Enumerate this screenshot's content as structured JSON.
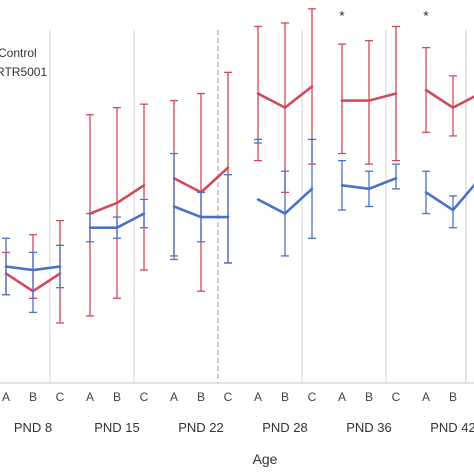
{
  "chart_data": {
    "type": "line",
    "xlabel": "Age",
    "ylabel": "",
    "ylim": [
      0,
      100
    ],
    "grid": false,
    "legend_position": "top-left",
    "legend": [
      {
        "name": "Control",
        "color": "#d24a5a"
      },
      {
        "name": "RTR5001",
        "color": "#4a72c8"
      }
    ],
    "groups": [
      {
        "label": "PND 8",
        "ticks": [
          "A",
          "B",
          "C"
        ],
        "series": [
          {
            "name": "Control",
            "values": [
              31,
              26,
              31
            ],
            "err_low": [
              25,
              24,
              17
            ],
            "err_high": [
              37,
              42,
              46
            ]
          },
          {
            "name": "RTR5001",
            "values": [
              33,
              32,
              33
            ],
            "err_low": [
              25,
              20,
              27
            ],
            "err_high": [
              41,
              37,
              39
            ]
          }
        ],
        "significant": false
      },
      {
        "label": "PND 15",
        "ticks": [
          "A",
          "B",
          "C"
        ],
        "series": [
          {
            "name": "Control",
            "values": [
              48,
              51,
              56
            ],
            "err_low": [
              19,
              24,
              32
            ],
            "err_high": [
              76,
              78,
              79
            ]
          },
          {
            "name": "RTR5001",
            "values": [
              44,
              44,
              48
            ],
            "err_low": [
              40,
              41,
              44
            ],
            "err_high": [
              48,
              47,
              52
            ]
          }
        ],
        "significant": false
      },
      {
        "label": "PND 22",
        "ticks": [
          "A",
          "B",
          "C"
        ],
        "series": [
          {
            "name": "Control",
            "values": [
              58,
              54,
              61
            ],
            "err_low": [
              36,
              26,
              34
            ],
            "err_high": [
              80,
              82,
              88
            ]
          },
          {
            "name": "RTR5001",
            "values": [
              50,
              47,
              47
            ],
            "err_low": [
              35,
              40,
              34
            ],
            "err_high": [
              65,
              54,
              59
            ]
          }
        ],
        "significant": false
      },
      {
        "label": "PND 28",
        "ticks": [
          "A",
          "B",
          "C"
        ],
        "series": [
          {
            "name": "Control",
            "values": [
              82,
              78,
              84
            ],
            "err_low": [
              63,
              54,
              62
            ],
            "err_high": [
              101,
              102,
              106
            ]
          },
          {
            "name": "RTR5001",
            "values": [
              52,
              48,
              55
            ],
            "err_low": [
              69,
              36,
              41
            ],
            "err_high": [
              68,
              60,
              69
            ]
          }
        ],
        "significant": true
      },
      {
        "label": "PND 36",
        "ticks": [
          "A",
          "B",
          "C"
        ],
        "series": [
          {
            "name": "Control",
            "values": [
              80,
              80,
              82
            ],
            "err_low": [
              65,
              62,
              63
            ],
            "err_high": [
              96,
              97,
              101
            ]
          },
          {
            "name": "RTR5001",
            "values": [
              56,
              55,
              58
            ],
            "err_low": [
              49,
              50,
              55
            ],
            "err_high": [
              63,
              60,
              62
            ]
          }
        ],
        "significant": true
      },
      {
        "label": "PND 42",
        "ticks": [
          "A",
          "B",
          "C"
        ],
        "series": [
          {
            "name": "Control",
            "values": [
              83,
              78,
              82
            ],
            "err_low": [
              71,
              70,
              62
            ],
            "err_high": [
              95,
              87,
              101
            ]
          },
          {
            "name": "RTR5001",
            "values": [
              54,
              49,
              58
            ],
            "err_low": [
              48,
              44,
              56
            ],
            "err_high": [
              60,
              53,
              60
            ]
          }
        ],
        "significant": true
      }
    ],
    "significance_marker": "*",
    "separator_after_group": "PND 22"
  }
}
